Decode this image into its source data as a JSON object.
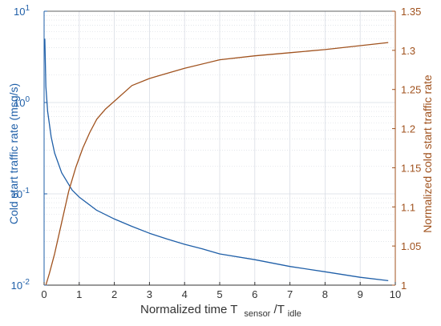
{
  "chart_data": {
    "type": "line",
    "title": "",
    "xlabel": "Normalized time T",
    "xlabel_sub1": "sensor",
    "xlabel_mid": "/T",
    "xlabel_sub2": "idle",
    "ylabel_left": "Cold start traffic rate (msg/s)",
    "ylabel_right": "Normalized cold start traffic rate",
    "xlim": [
      0,
      10
    ],
    "x_ticks": [
      "0",
      "1",
      "2",
      "3",
      "4",
      "5",
      "6",
      "7",
      "8",
      "9",
      "10"
    ],
    "y_left_scale": "log",
    "y_left_lim": [
      0.01,
      10
    ],
    "y_left_ticks": [
      {
        "base": "10",
        "exp": "-2"
      },
      {
        "base": "10",
        "exp": "-1"
      },
      {
        "base": "10",
        "exp": "0"
      },
      {
        "base": "10",
        "exp": "1"
      }
    ],
    "y_right_lim": [
      1.0,
      1.35
    ],
    "y_right_ticks": [
      "1",
      "1.05",
      "1.1",
      "1.15",
      "1.2",
      "1.25",
      "1.3",
      "1.35"
    ],
    "grid": true,
    "colors": {
      "blue": "#1f5fa8",
      "orange": "#a0521e",
      "grid": "#d9dde4",
      "axis": "#333333"
    },
    "series": [
      {
        "axis": "left",
        "color": "#1f5fa8",
        "x": [
          0.02,
          0.05,
          0.1,
          0.2,
          0.3,
          0.5,
          0.8,
          1.0,
          1.5,
          2.0,
          2.5,
          3.0,
          3.5,
          4.0,
          4.5,
          5.0,
          6.0,
          7.0,
          8.0,
          9.0,
          9.8
        ],
        "y": [
          5.0,
          1.5,
          0.8,
          0.42,
          0.28,
          0.17,
          0.11,
          0.092,
          0.066,
          0.053,
          0.044,
          0.037,
          0.032,
          0.028,
          0.025,
          0.022,
          0.019,
          0.016,
          0.014,
          0.0122,
          0.0112
        ]
      },
      {
        "axis": "right",
        "color": "#a0521e",
        "x": [
          0.05,
          0.15,
          0.3,
          0.5,
          0.7,
          0.9,
          1.1,
          1.3,
          1.5,
          1.75,
          2.0,
          2.5,
          3.0,
          3.3,
          4.0,
          5.0,
          6.0,
          7.0,
          8.0,
          9.0,
          9.8
        ],
        "y": [
          1.0,
          1.015,
          1.04,
          1.08,
          1.12,
          1.15,
          1.175,
          1.195,
          1.212,
          1.225,
          1.235,
          1.255,
          1.264,
          1.268,
          1.277,
          1.288,
          1.293,
          1.297,
          1.301,
          1.306,
          1.31
        ]
      }
    ]
  }
}
